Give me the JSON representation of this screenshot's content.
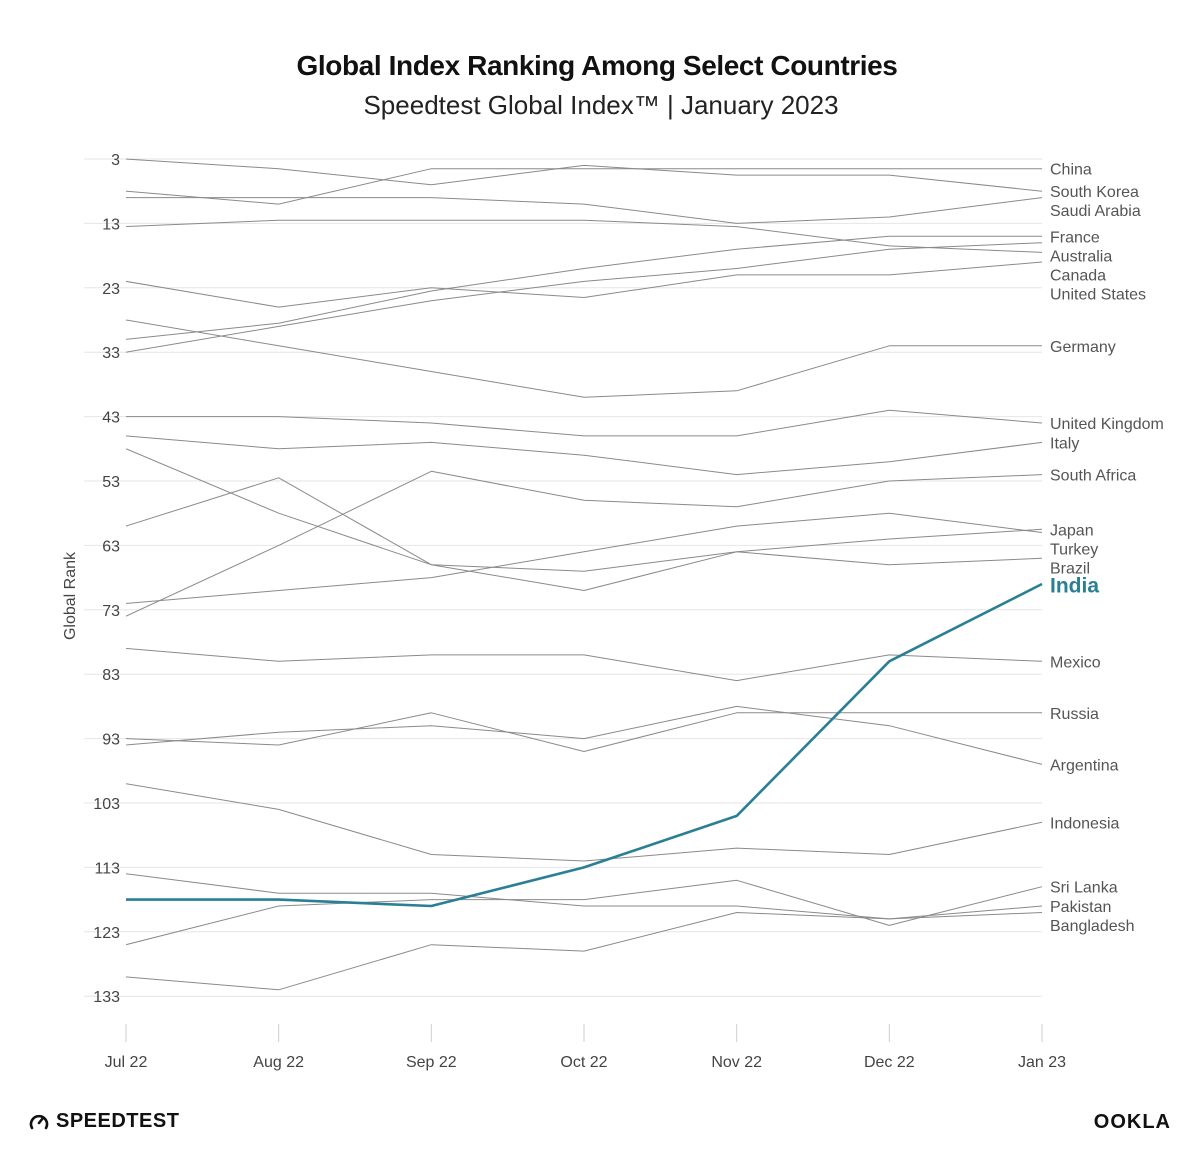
{
  "chart_data": {
    "type": "line",
    "title": "Global Index Ranking Among Select Countries",
    "subtitle": "Speedtest Global Index™ | January 2023",
    "xlabel": "",
    "ylabel": "Global Rank",
    "y_inverted": true,
    "ylim": [
      1,
      140
    ],
    "yticks": [
      3,
      13,
      23,
      33,
      43,
      53,
      63,
      73,
      83,
      93,
      103,
      113,
      123,
      133
    ],
    "categories": [
      "Jul 22",
      "Aug 22",
      "Sep 22",
      "Oct 22",
      "Nov 22",
      "Dec 22",
      "Jan 23"
    ],
    "highlight_color": "#2b7f95",
    "base_color": "#8a8a8a",
    "series": [
      {
        "name": "South Korea",
        "values": [
          3,
          4.5,
          7,
          4,
          5.5,
          5.5,
          8
        ]
      },
      {
        "name": "China",
        "values": [
          8,
          10,
          4.5,
          4.5,
          4.5,
          4.5,
          4.5
        ]
      },
      {
        "name": "Saudi Arabia",
        "values": [
          9,
          9,
          9,
          10,
          13,
          12,
          9
        ]
      },
      {
        "name": "Canada",
        "values": [
          13.5,
          12.5,
          12.5,
          12.5,
          13.5,
          16.5,
          17.5
        ]
      },
      {
        "name": "Australia",
        "values": [
          33,
          29,
          25,
          22,
          20,
          17,
          16
        ]
      },
      {
        "name": "United States",
        "values": [
          22,
          26,
          23,
          24.5,
          21,
          21,
          19
        ]
      },
      {
        "name": "France",
        "values": [
          31,
          28.5,
          23.5,
          20,
          17,
          15,
          15
        ]
      },
      {
        "name": "Germany",
        "values": [
          28,
          32,
          36,
          40,
          39,
          32,
          32
        ]
      },
      {
        "name": "United Kingdom",
        "values": [
          43,
          43,
          44,
          46,
          46,
          42,
          44
        ]
      },
      {
        "name": "Japan",
        "values": [
          60,
          52.5,
          66,
          67,
          64,
          62,
          60.5
        ]
      },
      {
        "name": "Italy",
        "values": [
          46,
          48,
          47,
          49,
          52,
          50,
          47
        ]
      },
      {
        "name": "Brazil",
        "values": [
          48,
          58,
          66,
          70,
          64,
          66,
          65
        ]
      },
      {
        "name": "South Africa",
        "values": [
          74,
          63,
          51.5,
          56,
          57,
          53,
          52
        ]
      },
      {
        "name": "Turkey",
        "values": [
          72,
          70,
          68,
          64,
          60,
          58,
          61
        ]
      },
      {
        "name": "India",
        "values": [
          118,
          118,
          119,
          113,
          105,
          81,
          69
        ],
        "highlight": true
      },
      {
        "name": "Mexico",
        "values": [
          79,
          81,
          80,
          80,
          84,
          80,
          81
        ]
      },
      {
        "name": "Russia",
        "values": [
          93,
          94,
          89,
          95,
          89,
          89,
          89
        ]
      },
      {
        "name": "Argentina",
        "values": [
          94,
          92,
          91,
          93,
          88,
          91,
          97
        ]
      },
      {
        "name": "Indonesia",
        "values": [
          100,
          104,
          111,
          112,
          110,
          111,
          106
        ]
      },
      {
        "name": "Bangladesh",
        "values": [
          114,
          117,
          117,
          119,
          119,
          121,
          120
        ]
      },
      {
        "name": "Sri Lanka",
        "values": [
          125,
          119,
          118,
          118,
          115,
          122,
          116
        ]
      },
      {
        "name": "Pakistan",
        "values": [
          130,
          132,
          125,
          126,
          120,
          121,
          119
        ]
      }
    ]
  },
  "branding": {
    "left_logo": "SPEEDTEST",
    "right_logo": "OOKLA"
  }
}
